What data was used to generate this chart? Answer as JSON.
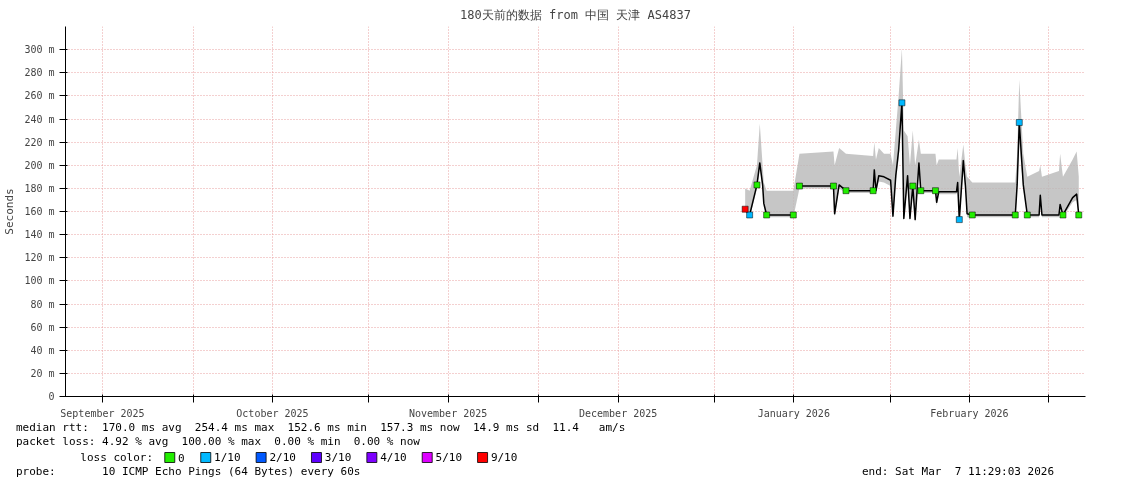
{
  "chart_data": {
    "type": "line",
    "title": "180天前的数据 from 中国 天津 AS4837",
    "ylabel": "Seconds",
    "legend_title": "loss color:",
    "xlim": [
      "2025-09-08T11:29",
      "2026-03-07T11:29"
    ],
    "xticks": [
      {
        "value": "2025-09-15",
        "label": "September 2025"
      },
      {
        "value": "2025-10-01",
        "label": null
      },
      {
        "value": "2025-10-15",
        "label": "October 2025"
      },
      {
        "value": "2025-11-01",
        "label": null
      },
      {
        "value": "2025-11-15",
        "label": "November 2025"
      },
      {
        "value": "2025-12-01",
        "label": null
      },
      {
        "value": "2025-12-15",
        "label": "December 2025"
      },
      {
        "value": "2026-01-01",
        "label": null
      },
      {
        "value": "2026-01-15",
        "label": "January 2026"
      },
      {
        "value": "2026-02-01",
        "label": null
      },
      {
        "value": "2026-02-15",
        "label": "February 2026"
      },
      {
        "value": "2026-03-01",
        "label": null
      }
    ],
    "ylim": [
      0,
      320
    ],
    "yticks": [
      0,
      {
        "value": 20,
        "label": "20 m"
      },
      {
        "value": 40,
        "label": "40 m"
      },
      {
        "value": 60,
        "label": "60 m"
      },
      {
        "value": 80,
        "label": "80 m"
      },
      {
        "value": 100,
        "label": "100 m"
      },
      {
        "value": 120,
        "label": "120 m"
      },
      {
        "value": 140,
        "label": "140 m"
      },
      {
        "value": 160,
        "label": "160 m"
      },
      {
        "value": 180,
        "label": "180 m"
      },
      {
        "value": 200,
        "label": "200 m"
      },
      {
        "value": 220,
        "label": "220 m"
      },
      {
        "value": 240,
        "label": "240 m"
      },
      {
        "value": 260,
        "label": "260 m"
      },
      {
        "value": 280,
        "label": "280 m"
      },
      {
        "value": 300,
        "label": "300 m"
      }
    ],
    "grid": true,
    "legend": "bottom",
    "series": [
      {
        "color": "#000000",
        "x": [
          "2026-01-06T10:00",
          "2026-01-07T05:00",
          "2026-01-08T12:00",
          "2026-01-09T00:00",
          "2026-01-09T12:00",
          "2026-01-09T17:00",
          "2026-01-10T05:00",
          "2026-01-14T22:00",
          "2026-01-15T12:00",
          "2026-01-16T00:00",
          "2026-01-22T00:00",
          "2026-01-22T05:00",
          "2026-01-23T00:00",
          "2026-01-24T05:00",
          "2026-01-29T00:00",
          "2026-01-29T05:00",
          "2026-01-29T12:00",
          "2026-01-30T00:00",
          "2026-01-30T22:00",
          "2026-02-01T02:00",
          "2026-02-01T12:00",
          "2026-02-02T00:00",
          "2026-02-02T12:00",
          "2026-02-03T02:00",
          "2026-02-03T10:00",
          "2026-02-04T02:00",
          "2026-02-04T12:00",
          "2026-02-05T00:00",
          "2026-02-05T10:00",
          "2026-02-06T02:00",
          "2026-02-06T10:00",
          "2026-02-09T00:00",
          "2026-02-09T05:00",
          "2026-02-09T14:00",
          "2026-02-12T17:00",
          "2026-02-12T22:00",
          "2026-02-13T05:00",
          "2026-02-13T22:00",
          "2026-02-14T07:00",
          "2026-02-14T14:00",
          "2026-02-15T12:00",
          "2026-02-23T02:00",
          "2026-02-23T10:00",
          "2026-02-23T19:00",
          "2026-02-24T12:00",
          "2026-02-25T05:00",
          "2026-02-27T07:00",
          "2026-02-27T12:00",
          "2026-02-27T19:00",
          "2026-03-02T19:00",
          "2026-03-03T00:00",
          "2026-03-03T12:00",
          "2026-03-05T05:00",
          "2026-03-05T22:00",
          "2026-03-06T07:00"
        ],
        "values": [
          162,
          157,
          183,
          202,
          183,
          167,
          157,
          157,
          null,
          182,
          182,
          158,
          183,
          178,
          178,
          196,
          178,
          191,
          190,
          187,
          156,
          191,
          213,
          254,
          154,
          191,
          154,
          182,
          153,
          202,
          178,
          178,
          168,
          177,
          177,
          185,
          153,
          204,
          182,
          158,
          157,
          157,
          183,
          237,
          183,
          157,
          157,
          174,
          157,
          157,
          166,
          157,
          172,
          175,
          157
        ],
        "lower": [
          160,
          155,
          180,
          198,
          180,
          164,
          155,
          155,
          null,
          180,
          180,
          156,
          180,
          176,
          176,
          190,
          176,
          186,
          185,
          182,
          154,
          186,
          205,
          245,
          152,
          186,
          152,
          178,
          151,
          196,
          176,
          176,
          165,
          175,
          175,
          180,
          151,
          198,
          178,
          155,
          155,
          155,
          180,
          220,
          180,
          155,
          155,
          170,
          155,
          155,
          163,
          155,
          168,
          170,
          155
        ],
        "upper": [
          180,
          178,
          200,
          236,
          200,
          185,
          178,
          178,
          null,
          210,
          212,
          200,
          215,
          210,
          208,
          220,
          205,
          215,
          210,
          210,
          200,
          230,
          260,
          301,
          230,
          225,
          200,
          230,
          200,
          222,
          210,
          210,
          200,
          205,
          205,
          215,
          190,
          218,
          200,
          190,
          185,
          185,
          210,
          274,
          210,
          190,
          195,
          200,
          190,
          195,
          210,
          190,
          205,
          212,
          190
        ]
      },
      {
        "type": "scatter",
        "name": "0",
        "color": "#22ee00",
        "marker": "square",
        "x": [
          "2026-01-08T12:00",
          "2026-01-10T05:00",
          "2026-01-14T22:00",
          "2026-01-16T00:00",
          "2026-01-22T00:00",
          "2026-01-24T05:00",
          "2026-01-29T00:00",
          "2026-02-05T00:00",
          "2026-02-06T10:00",
          "2026-02-09T00:00",
          "2026-02-15T12:00",
          "2026-02-23T02:00",
          "2026-02-25T05:00",
          "2026-03-03T12:00",
          "2026-03-06T07:00"
        ],
        "values": [
          183,
          157,
          157,
          182,
          182,
          178,
          178,
          182,
          178,
          178,
          157,
          157,
          157,
          157,
          157
        ]
      },
      {
        "type": "scatter",
        "name": "1/10",
        "color": "#00b8ff",
        "marker": "square",
        "x": [
          "2026-01-07T05:00",
          "2026-02-03T02:00",
          "2026-02-13T05:00",
          "2026-02-23T19:00"
        ],
        "values": [
          157,
          254,
          153,
          237
        ]
      },
      {
        "type": "scatter",
        "name": "2/10",
        "color": "#0059ff",
        "marker": "square"
      },
      {
        "type": "scatter",
        "name": "3/10",
        "color": "#5e00ff",
        "marker": "square"
      },
      {
        "type": "scatter",
        "name": "4/10",
        "color": "#7e00ff",
        "marker": "square"
      },
      {
        "type": "scatter",
        "name": "5/10",
        "color": "#dd00ff",
        "marker": "square"
      },
      {
        "type": "scatter",
        "name": "9/10",
        "color": "#ff0000",
        "marker": "square",
        "x": [
          "2026-01-06T10:00"
        ],
        "values": [
          162
        ]
      }
    ],
    "annotations": [
      "median rtt:  170.0 ms avg  254.4 ms max  152.6 ms min  157.3 ms now  14.9 ms sd  11.4   am/s",
      "packet loss: 4.92 % avg  100.00 % max  0.00 % min  0.00 % now",
      "probe:       10 ICMP Echo Pings (64 Bytes) every 60s",
      "end: Sat Mar  7 11:29:03 2026"
    ]
  }
}
